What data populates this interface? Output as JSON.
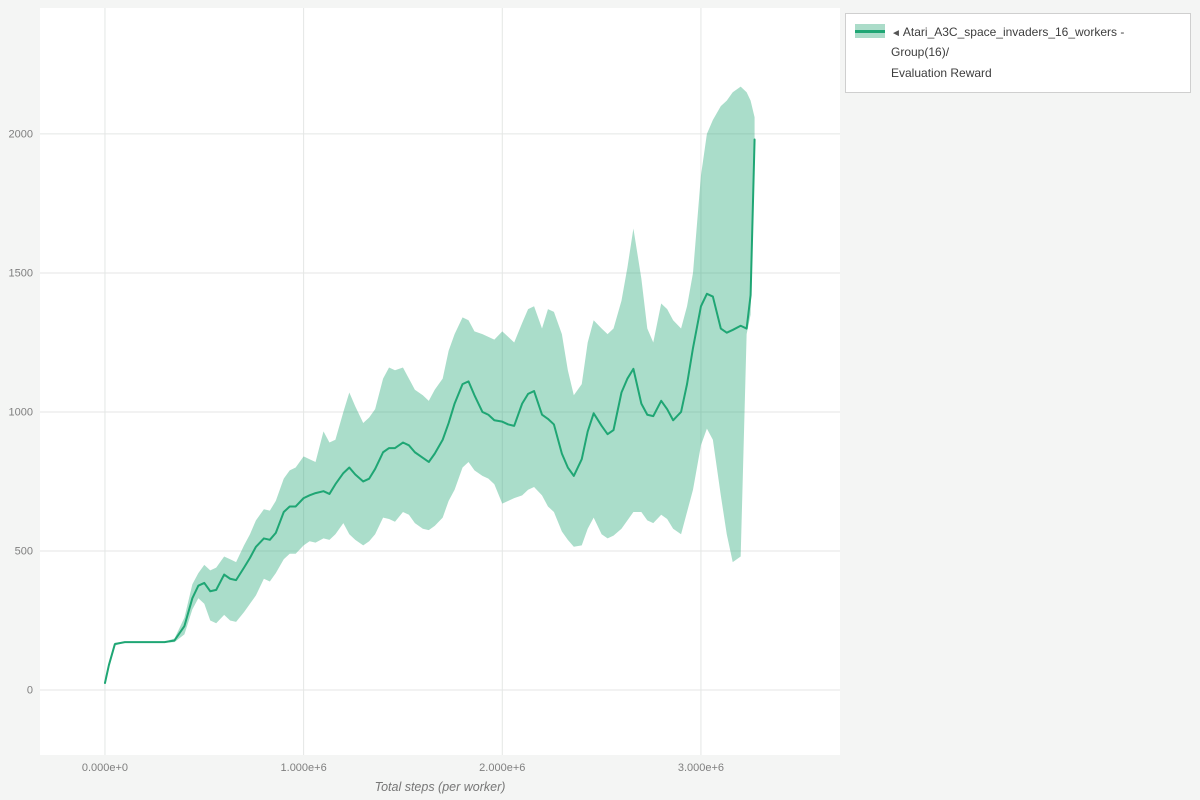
{
  "figure": {
    "background": "#f4f5f4",
    "plot_background": "#ffffff",
    "grid_color": "#e4e6e5",
    "axis_text_color": "#7f7f7f"
  },
  "legend": {
    "toggle_icon": "◄",
    "label_line1": "Atari_A3C_space_invaders_16_workers - Group(16)/",
    "label_line2": "Evaluation Reward",
    "line_color": "#1fa674",
    "band_color": "#abdcc9"
  },
  "chart_data": {
    "type": "line",
    "title": "",
    "xlabel": "Total steps (per worker)",
    "ylabel": "",
    "legend_position": "top-right outside",
    "grid": true,
    "xlim": [
      -327000,
      3700000
    ],
    "ylim": [
      -234,
      2453
    ],
    "x_ticks": [
      {
        "value": 0,
        "label": "0.000e+0"
      },
      {
        "value": 1000000,
        "label": "1.000e+6"
      },
      {
        "value": 2000000,
        "label": "2.000e+6"
      },
      {
        "value": 3000000,
        "label": "3.000e+6"
      }
    ],
    "y_ticks": [
      {
        "value": 0,
        "label": "0"
      },
      {
        "value": 500,
        "label": "500"
      },
      {
        "value": 1000,
        "label": "1000"
      },
      {
        "value": 1500,
        "label": "1500"
      },
      {
        "value": 2000,
        "label": "2000"
      }
    ],
    "series": [
      {
        "name": "Atari_A3C_space_invaders_16_workers - Group(16)/Evaluation Reward (mean)",
        "color": "#1fa674",
        "x": [
          0,
          20000,
          50000,
          100000,
          150000,
          200000,
          250000,
          300000,
          350000,
          400000,
          440000,
          470000,
          500000,
          530000,
          560000,
          600000,
          630000,
          660000,
          700000,
          730000,
          760000,
          800000,
          830000,
          860000,
          900000,
          930000,
          960000,
          1000000,
          1030000,
          1060000,
          1100000,
          1130000,
          1160000,
          1200000,
          1230000,
          1260000,
          1300000,
          1330000,
          1360000,
          1400000,
          1430000,
          1460000,
          1500000,
          1530000,
          1560000,
          1600000,
          1630000,
          1660000,
          1700000,
          1730000,
          1760000,
          1800000,
          1830000,
          1860000,
          1900000,
          1930000,
          1960000,
          2000000,
          2030000,
          2060000,
          2100000,
          2130000,
          2160000,
          2200000,
          2230000,
          2260000,
          2300000,
          2330000,
          2360000,
          2400000,
          2430000,
          2460000,
          2500000,
          2530000,
          2560000,
          2600000,
          2630000,
          2660000,
          2700000,
          2730000,
          2760000,
          2800000,
          2830000,
          2860000,
          2900000,
          2930000,
          2960000,
          3000000,
          3030000,
          3060000,
          3100000,
          3130000,
          3160000,
          3200000,
          3230000,
          3250000,
          3270000
        ],
        "y": [
          25,
          90,
          165,
          172,
          172,
          172,
          172,
          172,
          178,
          230,
          330,
          375,
          385,
          355,
          360,
          415,
          400,
          395,
          440,
          475,
          515,
          545,
          540,
          565,
          640,
          660,
          660,
          690,
          700,
          708,
          715,
          705,
          740,
          780,
          800,
          775,
          750,
          760,
          795,
          855,
          870,
          870,
          890,
          880,
          855,
          835,
          820,
          850,
          900,
          960,
          1030,
          1100,
          1110,
          1060,
          1000,
          990,
          970,
          965,
          955,
          950,
          1030,
          1065,
          1075,
          990,
          975,
          955,
          850,
          800,
          770,
          830,
          930,
          995,
          950,
          920,
          935,
          1070,
          1120,
          1155,
          1030,
          990,
          985,
          1040,
          1010,
          970,
          1000,
          1100,
          1230,
          1380,
          1425,
          1415,
          1300,
          1285,
          1295,
          1310,
          1300,
          1420,
          1980
        ]
      }
    ],
    "band": {
      "name": "min/max envelope",
      "color": "rgba(31,166,116,0.38)",
      "x": [
        0,
        20000,
        50000,
        100000,
        150000,
        200000,
        250000,
        300000,
        350000,
        400000,
        440000,
        470000,
        500000,
        530000,
        560000,
        600000,
        630000,
        660000,
        700000,
        730000,
        760000,
        800000,
        830000,
        860000,
        900000,
        930000,
        960000,
        1000000,
        1030000,
        1060000,
        1100000,
        1130000,
        1160000,
        1200000,
        1230000,
        1260000,
        1300000,
        1330000,
        1360000,
        1400000,
        1430000,
        1460000,
        1500000,
        1530000,
        1560000,
        1600000,
        1630000,
        1660000,
        1700000,
        1730000,
        1760000,
        1800000,
        1830000,
        1860000,
        1900000,
        1930000,
        1960000,
        2000000,
        2030000,
        2060000,
        2100000,
        2130000,
        2160000,
        2200000,
        2230000,
        2260000,
        2300000,
        2330000,
        2360000,
        2400000,
        2430000,
        2460000,
        2500000,
        2530000,
        2560000,
        2600000,
        2630000,
        2660000,
        2700000,
        2730000,
        2760000,
        2800000,
        2830000,
        2860000,
        2900000,
        2930000,
        2960000,
        3000000,
        3030000,
        3060000,
        3100000,
        3130000,
        3160000,
        3200000,
        3230000,
        3250000,
        3270000
      ],
      "lower": [
        20,
        85,
        160,
        170,
        170,
        170,
        170,
        170,
        172,
        200,
        290,
        330,
        310,
        250,
        240,
        270,
        250,
        245,
        280,
        310,
        340,
        400,
        390,
        420,
        470,
        490,
        490,
        520,
        535,
        530,
        545,
        540,
        560,
        600,
        560,
        540,
        520,
        535,
        560,
        620,
        615,
        605,
        640,
        630,
        600,
        580,
        575,
        590,
        620,
        680,
        720,
        800,
        820,
        790,
        770,
        760,
        740,
        670,
        680,
        690,
        700,
        720,
        730,
        700,
        660,
        640,
        570,
        540,
        515,
        520,
        580,
        620,
        560,
        545,
        555,
        580,
        610,
        640,
        640,
        610,
        600,
        630,
        615,
        580,
        560,
        640,
        720,
        880,
        940,
        900,
        700,
        560,
        460,
        480,
        1280,
        1350,
        1900
      ],
      "upper": [
        30,
        95,
        170,
        174,
        174,
        174,
        174,
        174,
        185,
        260,
        380,
        420,
        450,
        430,
        440,
        480,
        470,
        460,
        520,
        560,
        610,
        650,
        645,
        680,
        760,
        790,
        800,
        840,
        830,
        820,
        930,
        890,
        900,
        1000,
        1070,
        1020,
        960,
        980,
        1010,
        1120,
        1160,
        1150,
        1160,
        1120,
        1080,
        1060,
        1040,
        1080,
        1120,
        1220,
        1280,
        1340,
        1330,
        1290,
        1280,
        1270,
        1260,
        1290,
        1270,
        1250,
        1320,
        1370,
        1380,
        1300,
        1370,
        1360,
        1280,
        1150,
        1060,
        1100,
        1250,
        1330,
        1300,
        1280,
        1300,
        1400,
        1520,
        1660,
        1480,
        1300,
        1250,
        1390,
        1370,
        1330,
        1300,
        1380,
        1500,
        1850,
        2000,
        2050,
        2100,
        2120,
        2150,
        2170,
        2150,
        2120,
        2060
      ]
    }
  }
}
